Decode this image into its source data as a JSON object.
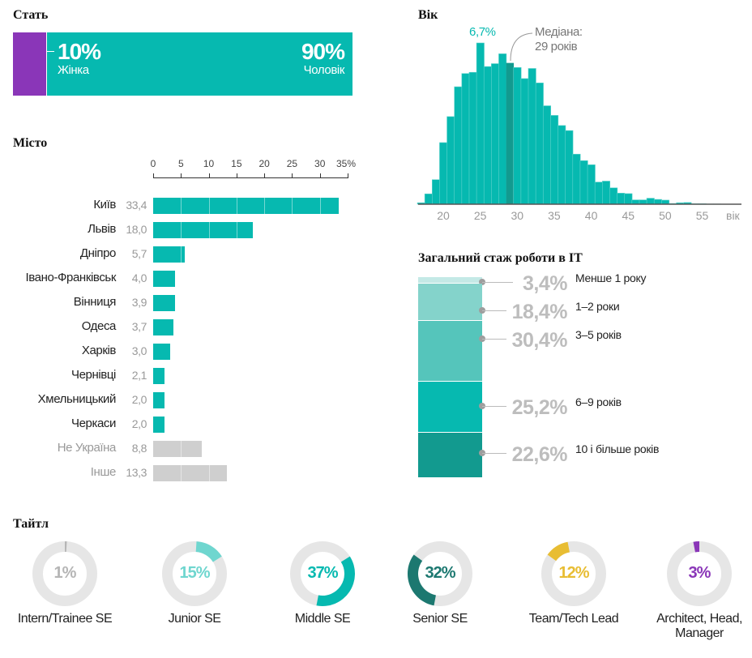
{
  "colors": {
    "teal": "#06b9b0",
    "purple": "#8a36b8",
    "gray": "#cfcfcf",
    "dark_teal": "#129a8f"
  },
  "gender": {
    "title": "Стать",
    "female": {
      "pct": "10%",
      "label": "Жінка",
      "value": 10
    },
    "male": {
      "pct": "90%",
      "label": "Чоловік",
      "value": 90
    }
  },
  "chart_data": [
    {
      "type": "bar",
      "title": "Місто",
      "ticks": [
        "0",
        "5",
        "10",
        "15",
        "20",
        "25",
        "30",
        "35%"
      ],
      "xlim": [
        0,
        35
      ],
      "categories": [
        "Київ",
        "Львів",
        "Дніпро",
        "Івано-Франківськ",
        "Вінниця",
        "Одеса",
        "Харків",
        "Чернівці",
        "Хмельницький",
        "Черкаси",
        "Не Україна",
        "Інше"
      ],
      "labels": [
        "33,4",
        "18,0",
        "5,7",
        "4,0",
        "3,9",
        "3,7",
        "3,0",
        "2,1",
        "2,0",
        "2,0",
        "8,8",
        "13,3"
      ],
      "values": [
        33.4,
        18.0,
        5.7,
        4.0,
        3.9,
        3.7,
        3.0,
        2.1,
        2.0,
        2.0,
        8.8,
        13.3
      ],
      "muted": [
        false,
        false,
        false,
        false,
        false,
        false,
        false,
        false,
        false,
        false,
        true,
        true
      ]
    },
    {
      "type": "bar",
      "title": "Вік",
      "xlabel": "вік",
      "ticks": [
        "20",
        "25",
        "30",
        "35",
        "40",
        "45",
        "50",
        "55"
      ],
      "peak_label": "6,7%",
      "median_label_1": "Медіана:",
      "median_label_2": "29 років",
      "median": 29,
      "x": [
        17,
        18,
        19,
        20,
        21,
        22,
        23,
        24,
        25,
        26,
        27,
        28,
        29,
        30,
        31,
        32,
        33,
        34,
        35,
        36,
        37,
        38,
        39,
        40,
        41,
        42,
        43,
        44,
        45,
        46,
        47,
        48,
        49,
        50,
        51,
        52,
        53,
        54,
        55,
        56,
        57
      ],
      "values": [
        0.06,
        0.43,
        1.02,
        2.56,
        3.64,
        4.88,
        5.43,
        5.48,
        6.7,
        5.72,
        5.84,
        6.25,
        5.87,
        5.68,
        5.22,
        5.64,
        5.04,
        4.09,
        3.69,
        3.27,
        3.06,
        2.08,
        1.81,
        1.64,
        0.92,
        0.96,
        0.68,
        0.46,
        0.44,
        0.18,
        0.18,
        0.25,
        0.2,
        0.17,
        0.03,
        0.06,
        0.07,
        0.02,
        0.02,
        0.01,
        0.01
      ]
    },
    {
      "type": "bar",
      "title": "Загальний стаж роботи в IT",
      "stacked": true,
      "categories": [
        "Менше 1 року",
        "1–2 роки",
        "3–5 років",
        "6–9 років",
        "10 і більше років"
      ],
      "labels": [
        "3,4%",
        "18,4%",
        "30,4%",
        "25,2%",
        "22,6%"
      ],
      "values": [
        3.4,
        18.4,
        30.4,
        25.2,
        22.6
      ],
      "colors": [
        "#c4e9e6",
        "#84d3cb",
        "#55c5bb",
        "#06b9b0",
        "#129a8f"
      ]
    },
    {
      "type": "pie",
      "title": "Тайтл",
      "categories": [
        "Intern/Trainee SE",
        "Junior SE",
        "Middle SE",
        "Senior SE",
        "Team/Tech Lead",
        "Architect, Head, Manager"
      ],
      "labels": [
        "1%",
        "15%",
        "37%",
        "32%",
        "12%",
        "3%"
      ],
      "values": [
        1,
        15,
        37,
        32,
        12,
        3
      ],
      "colors": [
        "#b5b5b5",
        "#6fd6cf",
        "#06b9b0",
        "#1c7870",
        "#e8bd33",
        "#8a36b8"
      ]
    }
  ]
}
